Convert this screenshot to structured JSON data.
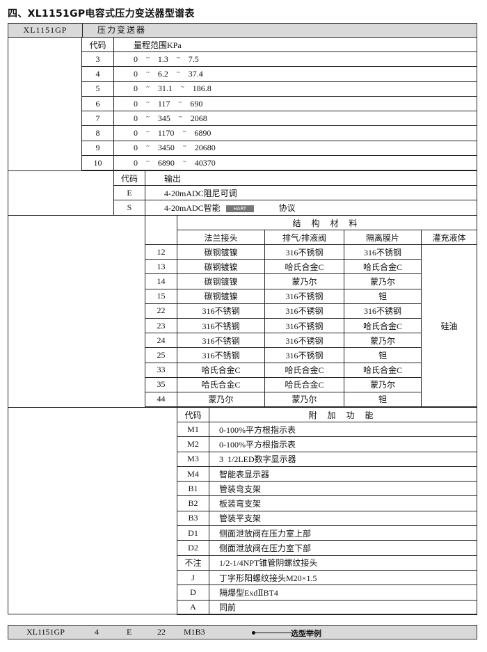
{
  "title": "四、XL1151GP电容式压力变送器型谱表",
  "header": {
    "model": "XL1151GP",
    "name": "压力变送器"
  },
  "range": {
    "code_label": "代码",
    "range_label": "量程范围KPa",
    "rows": [
      {
        "code": "3",
        "min": "0",
        "mid": "1.3",
        "max": "7.5"
      },
      {
        "code": "4",
        "min": "0",
        "mid": "6.2",
        "max": "37.4"
      },
      {
        "code": "5",
        "min": "0",
        "mid": "31.1",
        "max": "186.8"
      },
      {
        "code": "6",
        "min": "0",
        "mid": "117",
        "max": "690"
      },
      {
        "code": "7",
        "min": "0",
        "mid": "345",
        "max": "2068"
      },
      {
        "code": "8",
        "min": "0",
        "mid": "1170",
        "max": "6890"
      },
      {
        "code": "9",
        "min": "0",
        "mid": "3450",
        "max": "20680"
      },
      {
        "code": "10",
        "min": "0",
        "mid": "6890",
        "max": "40370"
      }
    ]
  },
  "output": {
    "code_label": "代码",
    "output_label": "输出",
    "rows": [
      {
        "code": "E",
        "desc": "4-20mADC阻尼可调",
        "suffix": ""
      },
      {
        "code": "S",
        "desc": "4-20mADC智能",
        "logo": "HART",
        "suffix": "协议"
      }
    ]
  },
  "materials": {
    "group_label": "结 构 材 料",
    "columns": [
      "法兰接头",
      "排气/排液阀",
      "隔离膜片",
      "灌充液体"
    ],
    "fill_fluid": "硅油",
    "rows": [
      {
        "code": "12",
        "flange": "碳钢镀镍",
        "vent": "316不锈钢",
        "diaphragm": "316不锈钢"
      },
      {
        "code": "13",
        "flange": "碳钢镀镍",
        "vent": "哈氏合金C",
        "diaphragm": "哈氏合金C"
      },
      {
        "code": "14",
        "flange": "碳钢镀镍",
        "vent": "蒙乃尔",
        "diaphragm": "蒙乃尔"
      },
      {
        "code": "15",
        "flange": "碳钢镀镍",
        "vent": "316不锈钢",
        "diaphragm": "钽"
      },
      {
        "code": "22",
        "flange": "316不锈钢",
        "vent": "316不锈钢",
        "diaphragm": "316不锈钢"
      },
      {
        "code": "23",
        "flange": "316不锈钢",
        "vent": "316不锈钢",
        "diaphragm": "哈氏合金C"
      },
      {
        "code": "24",
        "flange": "316不锈钢",
        "vent": "316不锈钢",
        "diaphragm": "蒙乃尔"
      },
      {
        "code": "25",
        "flange": "316不锈钢",
        "vent": "316不锈钢",
        "diaphragm": "钽"
      },
      {
        "code": "33",
        "flange": "哈氏合金C",
        "vent": "哈氏合金C",
        "diaphragm": "哈氏合金C"
      },
      {
        "code": "35",
        "flange": "哈氏合金C",
        "vent": "哈氏合金C",
        "diaphragm": "蒙乃尔"
      },
      {
        "code": "44",
        "flange": "蒙乃尔",
        "vent": "蒙乃尔",
        "diaphragm": "钽"
      }
    ]
  },
  "functions": {
    "code_label": "代码",
    "desc_label": "附 加 功 能",
    "rows": [
      {
        "code": "M1",
        "desc": "0-100%平方根指示表"
      },
      {
        "code": "M2",
        "desc": "0-100%平方根指示表"
      },
      {
        "code": "M3",
        "desc": "3  1/2LED数字显示器"
      },
      {
        "code": "M4",
        "desc": "智能表显示器"
      },
      {
        "code": "B1",
        "desc": "管装弯支架"
      },
      {
        "code": "B2",
        "desc": "板装弯支架"
      },
      {
        "code": "B3",
        "desc": "管装平支架"
      },
      {
        "code": "D1",
        "desc": "侧面泄放阀在压力室上部"
      },
      {
        "code": "D2",
        "desc": "侧面泄放阀在压力室下部"
      },
      {
        "code": "不注",
        "desc": "1/2-1/4NPT锥管阴螺纹接头"
      },
      {
        "code": "J",
        "desc": "丁字形阳螺纹接头M20×1.5"
      },
      {
        "code": "D",
        "desc": "隔爆型ExdⅡBT4"
      },
      {
        "code": "A",
        "desc": "同前"
      }
    ]
  },
  "example": {
    "model": "XL1151GP",
    "range_code": "4",
    "output_code": "E",
    "material_code": "22",
    "function_code": "M1B3",
    "label": "选型举例"
  }
}
